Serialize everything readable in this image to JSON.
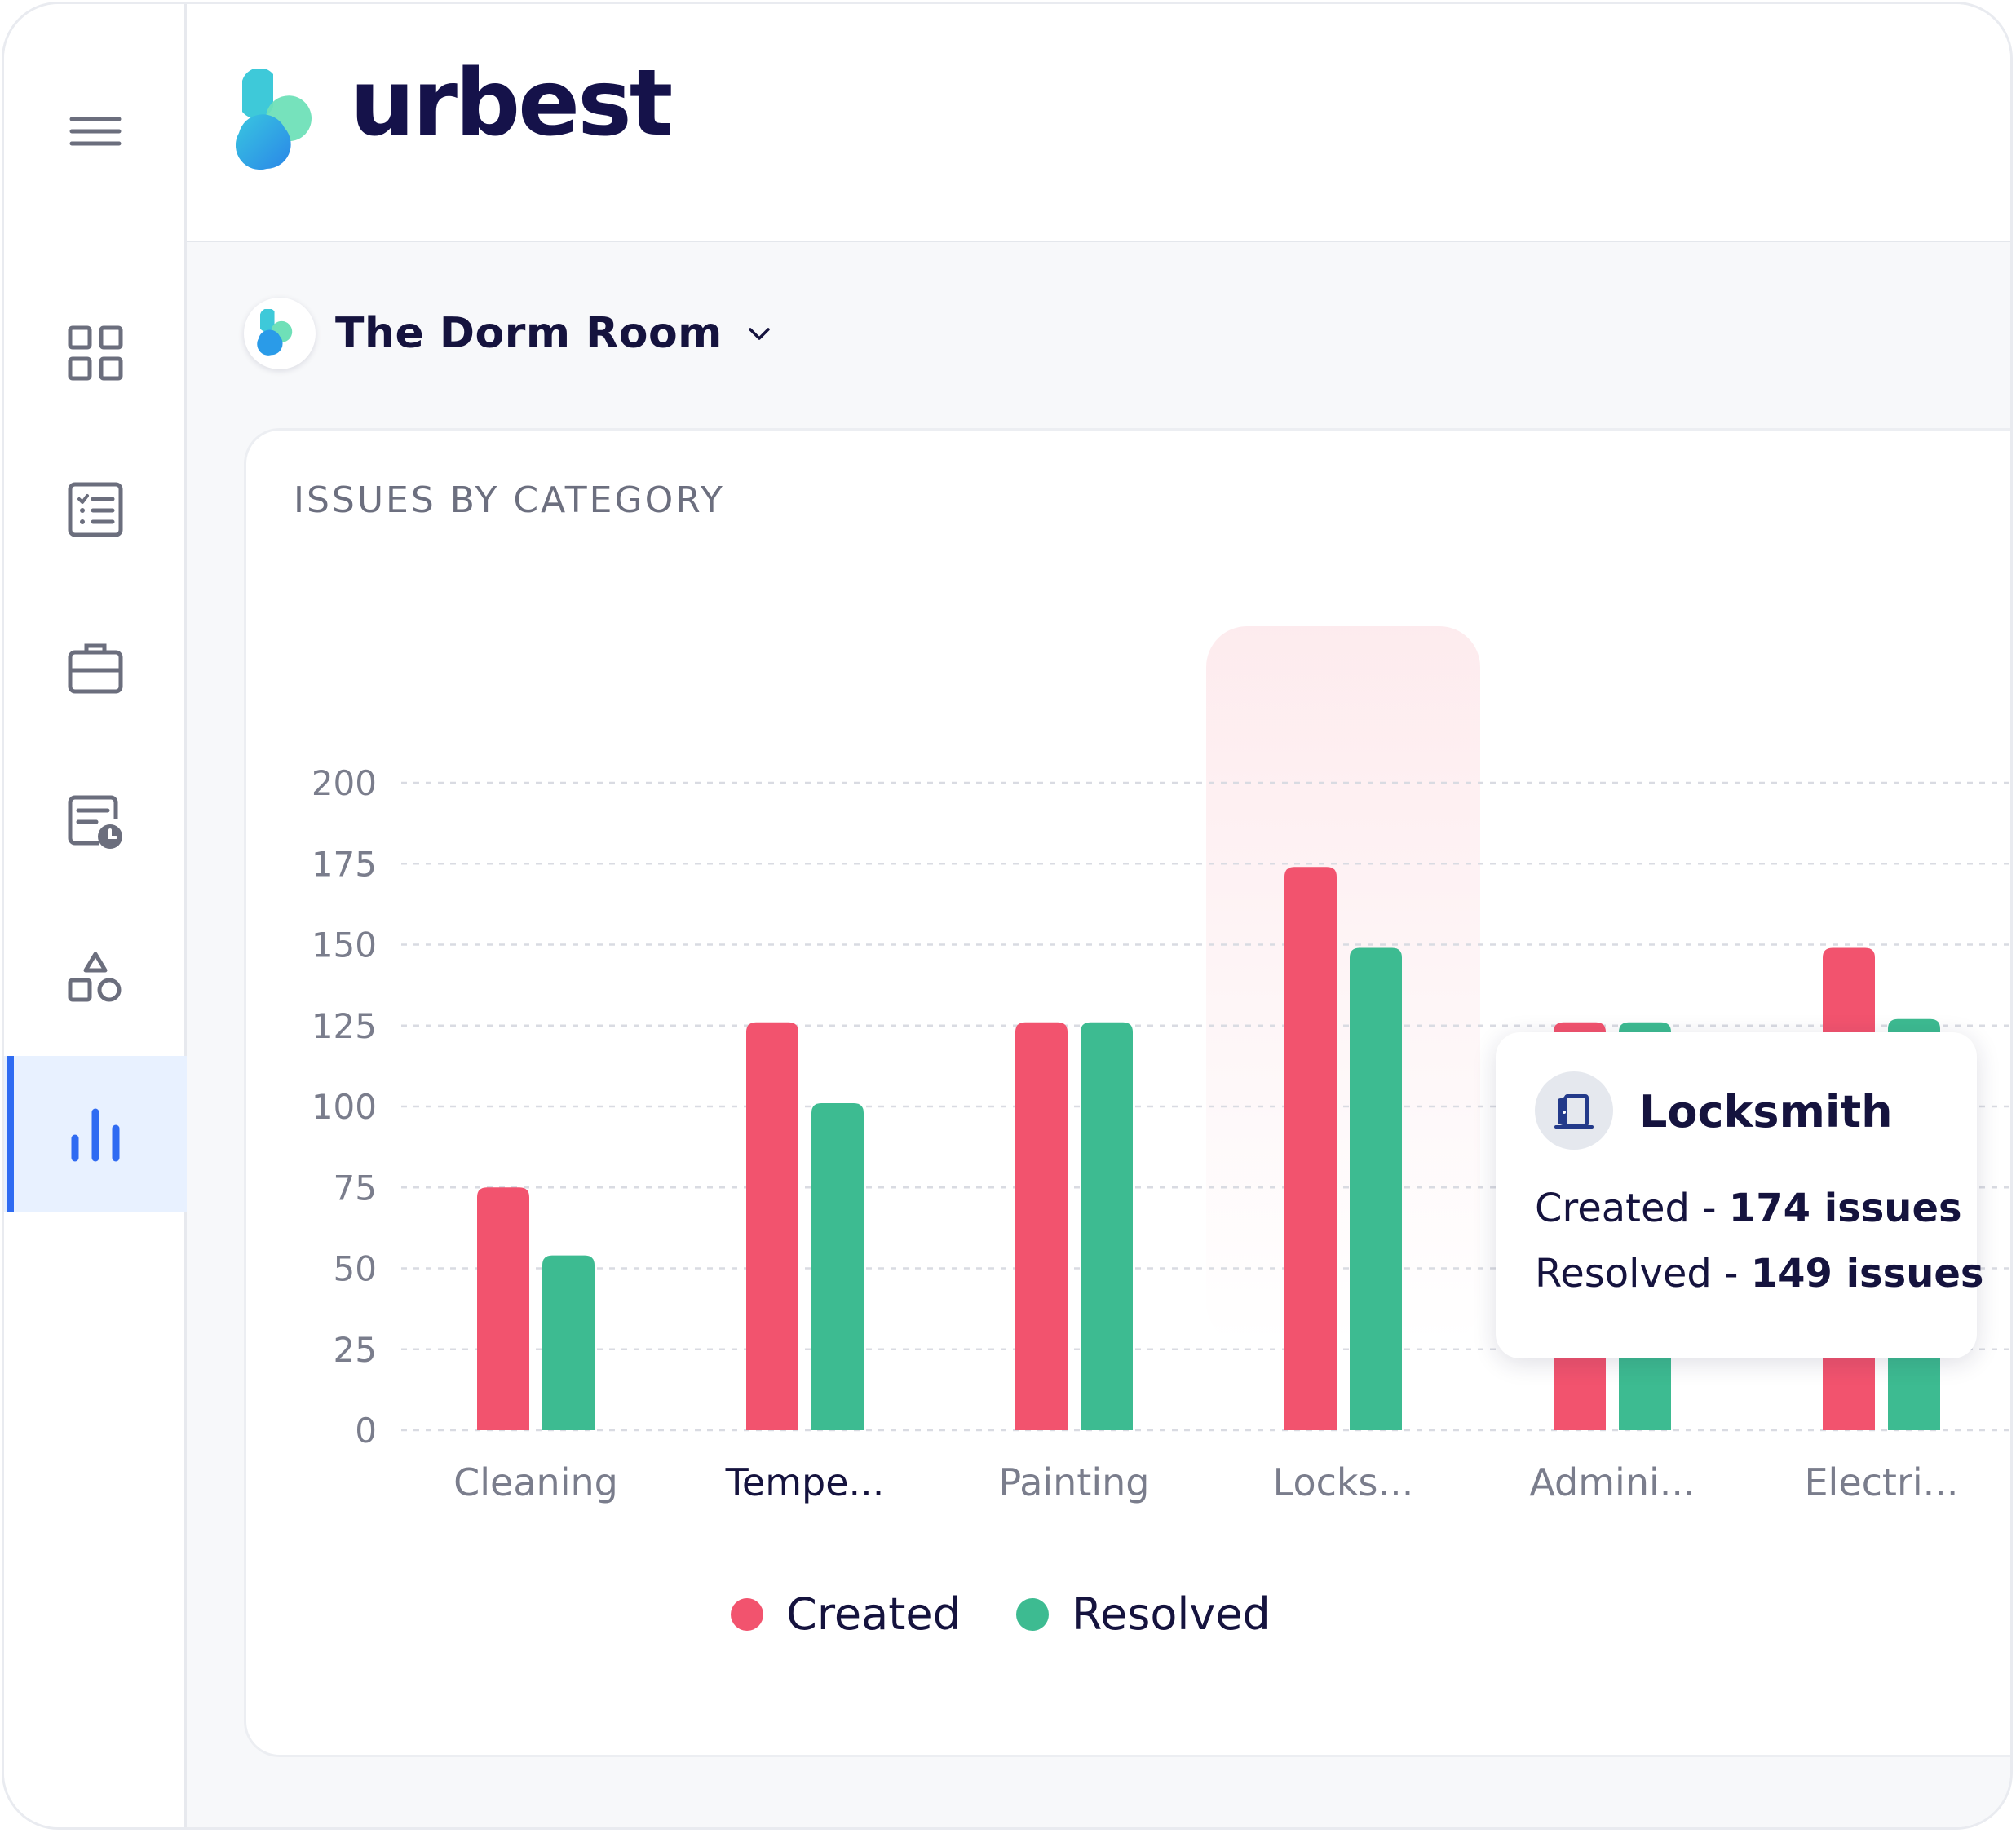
{
  "app": {
    "brand_name": "urbest",
    "brand_colors": {
      "primary_blue": "#2f6bf2",
      "teal": "#3bd1c5",
      "navy": "#15124a"
    }
  },
  "sidebar": {
    "items": [
      {
        "name": "menu",
        "icon": "hamburger-menu-icon"
      },
      {
        "name": "dashboard",
        "icon": "grid-icon"
      },
      {
        "name": "tasks",
        "icon": "checklist-icon"
      },
      {
        "name": "jobs",
        "icon": "briefcase-icon"
      },
      {
        "name": "history",
        "icon": "report-clock-icon"
      },
      {
        "name": "assets",
        "icon": "shapes-icon"
      },
      {
        "name": "analytics",
        "icon": "bar-chart-icon",
        "active": true
      }
    ]
  },
  "location": {
    "name": "The Dorm Room"
  },
  "card": {
    "title": "ISSUES BY CATEGORY"
  },
  "chart_data": {
    "type": "bar",
    "categories": [
      "Cleaning",
      "Tempe...",
      "Painting",
      "Locks...",
      "Admini...",
      "Electri..."
    ],
    "highlighted_category_index": 3,
    "series": [
      {
        "name": "Created",
        "color": "#f2536e",
        "values": [
          75,
          126,
          126,
          174,
          126,
          149
        ]
      },
      {
        "name": "Resolved",
        "color": "#3dbb91",
        "values": [
          54,
          101,
          126,
          149,
          126,
          127
        ]
      }
    ],
    "ylim": [
      0,
      200
    ],
    "yticks": [
      0,
      25,
      50,
      75,
      100,
      125,
      150,
      175,
      200
    ],
    "grid": true,
    "legend_position": "bottom"
  },
  "legend": {
    "created_label": "Created",
    "resolved_label": "Resolved"
  },
  "tooltip": {
    "icon": "door-icon",
    "title": "Locksmith",
    "created_label": "Created - ",
    "created_value": "174 issues",
    "resolved_label": "Resolved - ",
    "resolved_value": "149 issues"
  }
}
